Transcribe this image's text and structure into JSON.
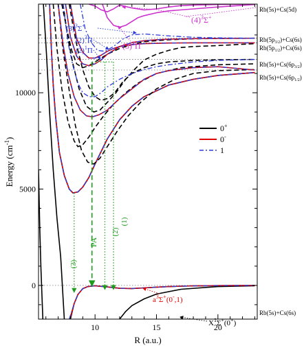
{
  "chart_data": {
    "type": "line",
    "xlabel": "R (a.u.)",
    "ylabel": "Energy (cm",
    "ylabel_sup": "-1",
    "ylabel_close": ")",
    "xlim": [
      5.4,
      23.2
    ],
    "ylim": [
      -1750,
      14600
    ],
    "x_ticks": [
      10,
      15,
      20
    ],
    "y_ticks": [
      0,
      5000,
      10000
    ],
    "legend": {
      "placement": "middle-right",
      "entries": [
        {
          "label": "0",
          "sup": "+",
          "color": "#000000",
          "dash": "solid"
        },
        {
          "label": "0",
          "sup": "-",
          "color": "#e00000",
          "dash": "solid"
        },
        {
          "label": "1",
          "sup": "",
          "color": "#2a3bd6",
          "dash": "dashdot"
        }
      ]
    },
    "asymptotes": [
      {
        "label": "Rb(5s)+Cs(5d)",
        "energy": 14600
      },
      {
        "label": "Rb(5p3/2)+Cs(6s)",
        "energy": 12830
      },
      {
        "label": "Rb(5p1/2)+Cs(6s)",
        "energy": 12590
      },
      {
        "label": "Rb(5s)+Cs(6p3/2)",
        "energy": 11730
      },
      {
        "label": "Rb(5s)+Cs(6p1/2)",
        "energy": 11180
      },
      {
        "label": "Rb(5s)+Cs(6s)",
        "energy": 0
      }
    ],
    "dotted_lines_y": [
      14600,
      12830,
      12590,
      11730,
      11180,
      0
    ],
    "series": [
      {
        "color": "#000000",
        "dash": "solid",
        "x": [
          5.8,
          6.05,
          6.3,
          6.6,
          6.9,
          7.2,
          7.5
        ],
        "y": [
          14600,
          12000,
          9000,
          6000,
          3500,
          1500,
          -1750
        ]
      },
      {
        "color": "#000000",
        "dash": "solid",
        "x": [
          5.4,
          5.5,
          5.6,
          5.7,
          5.75
        ],
        "y": [
          6000,
          3000,
          800,
          -900,
          -1750
        ]
      },
      {
        "color": "#000000",
        "dash": "solid",
        "x": [
          12.0,
          12.5,
          13,
          14,
          15,
          17,
          20,
          23
        ],
        "y": [
          -1750,
          -1350,
          -1050,
          -700,
          -450,
          -200,
          -60,
          -20
        ]
      },
      {
        "color": "#000000",
        "dash": "solid",
        "x": [
          8.0,
          8.3,
          8.6,
          9,
          9.4,
          10,
          11,
          12,
          13,
          14,
          15,
          16,
          17,
          18,
          20,
          23
        ],
        "y": [
          -1750,
          -950,
          -480,
          -170,
          -60,
          -20,
          -80,
          -150,
          -160,
          -130,
          -90,
          -60,
          -40,
          -25,
          -10,
          0
        ]
      },
      {
        "color": "#e00000",
        "dash": "solid",
        "x": [
          7.95,
          8.3,
          8.6,
          9,
          9.4,
          10,
          11,
          12,
          13,
          14,
          15,
          16,
          17,
          18,
          20,
          23
        ],
        "y": [
          -1750,
          -950,
          -480,
          -170,
          -60,
          -20,
          -80,
          -150,
          -160,
          -130,
          -90,
          -60,
          -40,
          -25,
          -10,
          0
        ]
      },
      {
        "color": "#2a3bd6",
        "dash": "dashdot",
        "x": [
          7.9,
          8.3,
          8.6,
          9,
          9.4,
          10,
          11,
          12,
          13,
          14,
          15,
          16,
          17,
          18,
          20,
          23
        ],
        "y": [
          -1750,
          -950,
          -480,
          -170,
          -60,
          -20,
          -80,
          -150,
          -160,
          -130,
          -90,
          -60,
          -40,
          -25,
          -10,
          0
        ]
      },
      {
        "color": "#000000",
        "dash": "solid",
        "x": [
          6.3,
          6.45,
          6.6,
          6.8,
          7.1,
          7.5,
          7.9,
          8.2,
          8.6,
          9,
          9.5,
          10,
          11,
          12,
          13,
          14,
          16,
          18,
          20,
          23
        ],
        "y": [
          14600,
          12200,
          10400,
          8700,
          6900,
          5700,
          5000,
          4800,
          4850,
          5100,
          5600,
          6300,
          7600,
          8600,
          9300,
          9800,
          10400,
          10700,
          10900,
          11050
        ]
      },
      {
        "color": "#e00000",
        "dash": "solid",
        "x": [
          6.3,
          6.45,
          6.6,
          6.8,
          7.1,
          7.5,
          7.9,
          8.2,
          8.6,
          9,
          9.5,
          10,
          11,
          12,
          13,
          14,
          16,
          18,
          20,
          23
        ],
        "y": [
          14600,
          12200,
          10400,
          8700,
          6900,
          5700,
          5000,
          4800,
          4850,
          5100,
          5600,
          6300,
          7600,
          8600,
          9300,
          9800,
          10400,
          10700,
          10900,
          11050
        ]
      },
      {
        "color": "#2a3bd6",
        "dash": "dashdot",
        "x": [
          6.3,
          6.45,
          6.6,
          6.8,
          7.1,
          7.5,
          7.9,
          8.2,
          8.6,
          9,
          9.5,
          10,
          11,
          12,
          13,
          14,
          16,
          18,
          20,
          23
        ],
        "y": [
          14600,
          12200,
          10400,
          8700,
          6900,
          5700,
          5000,
          4800,
          4850,
          5100,
          5600,
          6300,
          7600,
          8600,
          9300,
          9800,
          10400,
          10700,
          10900,
          11050
        ]
      },
      {
        "color": "#000000",
        "dash": "dash",
        "x": [
          6.6,
          6.9,
          7.3,
          7.8,
          8.3,
          8.6,
          9,
          9.5,
          10,
          10.7,
          11.5,
          12.5,
          13.5,
          15,
          17,
          20,
          23
        ],
        "y": [
          14600,
          12300,
          10200,
          8500,
          7500,
          7200,
          7300,
          7700,
          8200,
          8800,
          9400,
          10000,
          10500,
          11000,
          11300,
          11450,
          11500
        ]
      },
      {
        "color": "#000000",
        "dash": "dash",
        "x": [
          7.0,
          7.4,
          7.9,
          8.4,
          8.9,
          9.4,
          9.9,
          10.4,
          11,
          11.8,
          12.7,
          13.7,
          15,
          16.5,
          18,
          20,
          23
        ],
        "y": [
          14600,
          12200,
          10100,
          8300,
          7000,
          6400,
          6300,
          6600,
          7200,
          8000,
          8800,
          9500,
          10200,
          10700,
          11000,
          11150,
          11200
        ]
      },
      {
        "color": "#000000",
        "dash": "dash",
        "x": [
          7.4,
          7.8,
          8.2,
          8.7,
          9.3,
          9.9,
          10.4,
          11,
          11.7,
          12.5,
          13.2,
          14,
          15,
          16,
          17,
          18,
          20,
          23
        ],
        "y": [
          14600,
          12800,
          11500,
          10200,
          9300,
          9000,
          9100,
          9500,
          10000,
          10700,
          11200,
          11700,
          12000,
          12200,
          12350,
          12400,
          12450,
          12550
        ]
      },
      {
        "color": "#000000",
        "dash": "dash",
        "x": [
          7.9,
          8.2,
          8.6,
          9,
          9.5,
          10,
          10.5,
          11,
          11.6,
          12.3,
          13,
          14,
          15,
          16,
          18,
          20,
          23
        ],
        "y": [
          14600,
          13500,
          12200,
          11200,
          10300,
          9800,
          9600,
          9700,
          10000,
          10600,
          11000,
          11300,
          11500,
          11600,
          11680,
          11710,
          11730
        ]
      },
      {
        "color": "#000000",
        "dash": "dash",
        "x": [
          7.3,
          7.7,
          8.1,
          8.5,
          9,
          9.5,
          10,
          11,
          12,
          13,
          14,
          16,
          18,
          20,
          23
        ],
        "y": [
          14600,
          13300,
          12200,
          11500,
          11300,
          11400,
          11600,
          12000,
          12300,
          12500,
          12650,
          12750,
          12800,
          12820,
          12830
        ]
      },
      {
        "color": "#e00000",
        "dash": "solid",
        "x": [
          7.0,
          7.4,
          7.8,
          8.3,
          8.8,
          9.3,
          9.8,
          10.3,
          11,
          12,
          13,
          14,
          15,
          16,
          18,
          20,
          23
        ],
        "y": [
          14600,
          12500,
          11000,
          9800,
          9100,
          8800,
          8750,
          8850,
          9100,
          9700,
          10200,
          10700,
          11000,
          11150,
          11300,
          11350,
          11180
        ]
      },
      {
        "color": "#2a3bd6",
        "dash": "dashdot",
        "x": [
          7.0,
          7.4,
          7.8,
          8.3,
          8.8,
          9.3,
          9.8,
          10.3,
          11,
          12,
          13,
          14,
          15,
          16,
          18,
          20,
          23
        ],
        "y": [
          14600,
          12500,
          11000,
          9800,
          9100,
          8800,
          8750,
          8850,
          9100,
          9700,
          10200,
          10700,
          11000,
          11150,
          11300,
          11350,
          11180
        ]
      },
      {
        "color": "#2a3bd6",
        "dash": "dashdot",
        "x": [
          7.4,
          7.8,
          8.2,
          8.6,
          9,
          9.5,
          10,
          10.5,
          11,
          12,
          13,
          14,
          15,
          16,
          18,
          20,
          23
        ],
        "y": [
          14600,
          12600,
          11400,
          10500,
          10000,
          9800,
          9800,
          10000,
          10300,
          10700,
          11000,
          11200,
          11350,
          11450,
          11600,
          11680,
          11730
        ]
      },
      {
        "color": "#e00000",
        "dash": "solid",
        "x": [
          7.6,
          8.0,
          8.5,
          9,
          9.5,
          10,
          10.5,
          11,
          11.5,
          12,
          13,
          14,
          15,
          16,
          18,
          20,
          23
        ],
        "y": [
          14600,
          12900,
          11900,
          11500,
          11400,
          11500,
          11700,
          12000,
          12200,
          12400,
          12600,
          12700,
          12750,
          12780,
          12810,
          12820,
          12830
        ]
      },
      {
        "color": "#2a3bd6",
        "dash": "dashdot",
        "x": [
          7.6,
          8.0,
          8.5,
          9,
          9.5,
          10,
          10.5,
          11,
          11.5,
          12,
          13,
          14,
          15,
          16,
          18,
          20,
          23
        ],
        "y": [
          14600,
          12900,
          11900,
          11500,
          11400,
          11500,
          11700,
          12000,
          12200,
          12400,
          12600,
          12700,
          12750,
          12780,
          12810,
          12820,
          12830
        ]
      },
      {
        "color": "#e00000",
        "dash": "solid",
        "x": [
          8.0,
          8.5,
          9,
          9.5,
          10,
          10.5,
          11,
          11.5,
          12,
          13,
          14,
          16,
          18,
          20,
          23
        ],
        "y": [
          14600,
          12800,
          12100,
          11800,
          11800,
          11950,
          12150,
          12300,
          12400,
          12500,
          12550,
          12580,
          12590,
          12590,
          12590
        ]
      },
      {
        "color": "#2a3bd6",
        "dash": "dashdot",
        "x": [
          8.0,
          8.5,
          9,
          9.5,
          10,
          10.5,
          11,
          11.5,
          12,
          13,
          14,
          16,
          18,
          20,
          23
        ],
        "y": [
          14600,
          12800,
          12100,
          11800,
          11800,
          11950,
          12150,
          12300,
          12400,
          12500,
          12550,
          12580,
          12590,
          12590,
          12590
        ]
      },
      {
        "color": "#2a3bd6",
        "dash": "dashdot",
        "x": [
          8.8,
          9.2,
          9.7,
          10.2,
          10.8,
          11.5,
          12.3,
          13,
          14,
          15,
          16,
          18,
          20,
          23
        ],
        "y": [
          14600,
          13300,
          12600,
          12200,
          12150,
          12400,
          12800,
          13000,
          13050,
          13000,
          12950,
          12880,
          12850,
          12830
        ]
      },
      {
        "color": "#cc33cc",
        "dash": "solid",
        "x": [
          10.6,
          11.0,
          11.5,
          12,
          12.5,
          13,
          13.5,
          14,
          15,
          16,
          18,
          20,
          23
        ],
        "y": [
          14600,
          13900,
          13500,
          13400,
          13500,
          13700,
          13900,
          14000,
          14150,
          14250,
          14350,
          14450,
          14580
        ]
      },
      {
        "color": "#cc33cc",
        "dash": "solid",
        "x": [
          9.5,
          10,
          10.5,
          11,
          11.5,
          12,
          13,
          14,
          15,
          16,
          17,
          18,
          20,
          23
        ],
        "y": [
          14600,
          14500,
          14300,
          14200,
          14350,
          14550,
          14400,
          14300,
          14350,
          14450,
          14520,
          14550,
          14580,
          14600
        ]
      }
    ],
    "vertical_arrows": [
      {
        "label": "(3)",
        "x": 8.3,
        "y_top": 4800,
        "y_bottom": -350,
        "color": "#1c9a1c",
        "dash": "dotted"
      },
      {
        "label": "PA",
        "x": 9.75,
        "y_top": 11600,
        "y_bottom": -20,
        "color": "#1c9a1c",
        "dash": "dash"
      },
      {
        "label": "(2)",
        "x": 10.8,
        "y_top": 11600,
        "y_bottom": -200,
        "color": "#1c9a1c",
        "dash": "dotted"
      },
      {
        "label": "(1)",
        "x": 11.5,
        "y_top": 11600,
        "y_bottom": -200,
        "color": "#1c9a1c",
        "dash": "dotted"
      }
    ],
    "green_horizontal": {
      "x1": 9.75,
      "x2": 11.5,
      "y": 11600,
      "color": "#1c9a1c",
      "dash": "dotted"
    },
    "annotations": [
      {
        "main": "(4)",
        "sup": "3",
        "rest": "Σ",
        "sup2": "+",
        "color": "#cc33cc",
        "size": 12
      },
      {
        "main": "(3)",
        "sup": "3",
        "rest": "Π",
        "sup2": "",
        "color": "#cc33cc",
        "size": 12
      },
      {
        "main": "(3)",
        "sup": "3",
        "rest": "Σ",
        "sup2": "+",
        "color": "#2a3bd6",
        "size": 11
      },
      {
        "main": "(2)",
        "sup": "3",
        "rest": "Π",
        "sup2": "",
        "color": "#2a3bd6",
        "size": 11
      },
      {
        "main": "(2)",
        "sup": "1",
        "rest": "Π",
        "sup2": "",
        "color": "#2a3bd6",
        "size": 11
      },
      {
        "main": "a",
        "sup": "3",
        "rest": "Σ",
        "sup2": "+",
        "tail": "(0",
        "tail_sup": "-",
        "tail_end": ",1)",
        "color": "#e00000",
        "size": 11
      },
      {
        "main": "X",
        "sup": "1",
        "rest": "Σ",
        "sup2": "+",
        "tail": "(0",
        "tail_sup": "+",
        "tail_end": ")",
        "color": "#000000",
        "size": 11
      }
    ]
  }
}
